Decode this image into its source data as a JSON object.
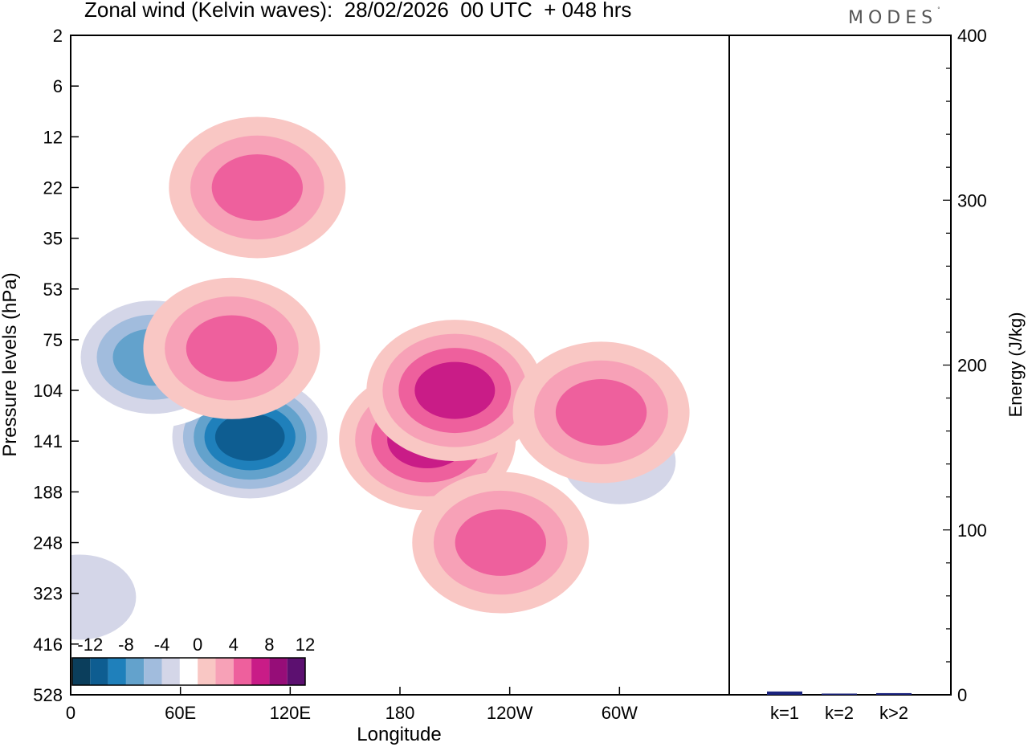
{
  "header": {
    "title": "Zonal wind (Kelvin waves):  28/02/2026  00 UTC  + 048 hrs",
    "brand": "MODES",
    "brand_mark": "°"
  },
  "colors": {
    "scale": [
      "#0b3e5c",
      "#0e5d91",
      "#1f80bb",
      "#63a2cc",
      "#a1bcdd",
      "#d4d6e8",
      "#ffffff",
      "#f9c7c4",
      "#f7a1b7",
      "#ee609d",
      "#c91c87",
      "#960d78",
      "#5c1070"
    ],
    "energy_bar": "#1a237e",
    "axis": "#000000"
  },
  "chart_data": [
    {
      "type": "heatmap",
      "title": "Zonal wind (Kelvin waves):  28/02/2026  00 UTC  + 048 hrs",
      "xlabel": "Longitude",
      "ylabel": "Pressure levels (hPa)",
      "x_ticks": [
        "0",
        "60E",
        "120E",
        "180",
        "120W",
        "60W"
      ],
      "y_ticks": [
        "2",
        "6",
        "12",
        "22",
        "35",
        "53",
        "75",
        "104",
        "141",
        "188",
        "248",
        "323",
        "416",
        "528"
      ],
      "colorbar": {
        "tick_labels": [
          "-12",
          "-8",
          "-4",
          "0",
          "4",
          "8",
          "12"
        ],
        "levels": [
          -14,
          -12,
          -10,
          -8,
          -6,
          -4,
          -2,
          2,
          4,
          6,
          8,
          10,
          12,
          14
        ]
      },
      "features": [
        {
          "sign": "negative",
          "lon": 98,
          "level": 138,
          "peak": -13
        },
        {
          "sign": "negative",
          "lon": 45,
          "level": 85,
          "peak": -9
        },
        {
          "sign": "negative",
          "lon": 5,
          "level": 330,
          "peak": -5
        },
        {
          "sign": "negative",
          "lon": 300,
          "level": 160,
          "peak": -5
        },
        {
          "sign": "positive",
          "lon": 195,
          "level": 140,
          "peak": 9
        },
        {
          "sign": "positive",
          "lon": 210,
          "level": 104,
          "peak": 9
        },
        {
          "sign": "positive",
          "lon": 235,
          "level": 248,
          "peak": 7
        },
        {
          "sign": "positive",
          "lon": 88,
          "level": 80,
          "peak": 7
        },
        {
          "sign": "positive",
          "lon": 102,
          "level": 22,
          "peak": 7
        },
        {
          "sign": "positive",
          "lon": 290,
          "level": 120,
          "peak": 6
        }
      ]
    },
    {
      "type": "bar",
      "ylabel": "Energy (J/kg)",
      "categories": [
        "k=1",
        "k=2",
        "k>2"
      ],
      "values": [
        2,
        0.5,
        1
      ],
      "ylim": [
        0,
        400
      ],
      "y_ticks": [
        "0",
        "100",
        "200",
        "300",
        "400"
      ]
    }
  ]
}
